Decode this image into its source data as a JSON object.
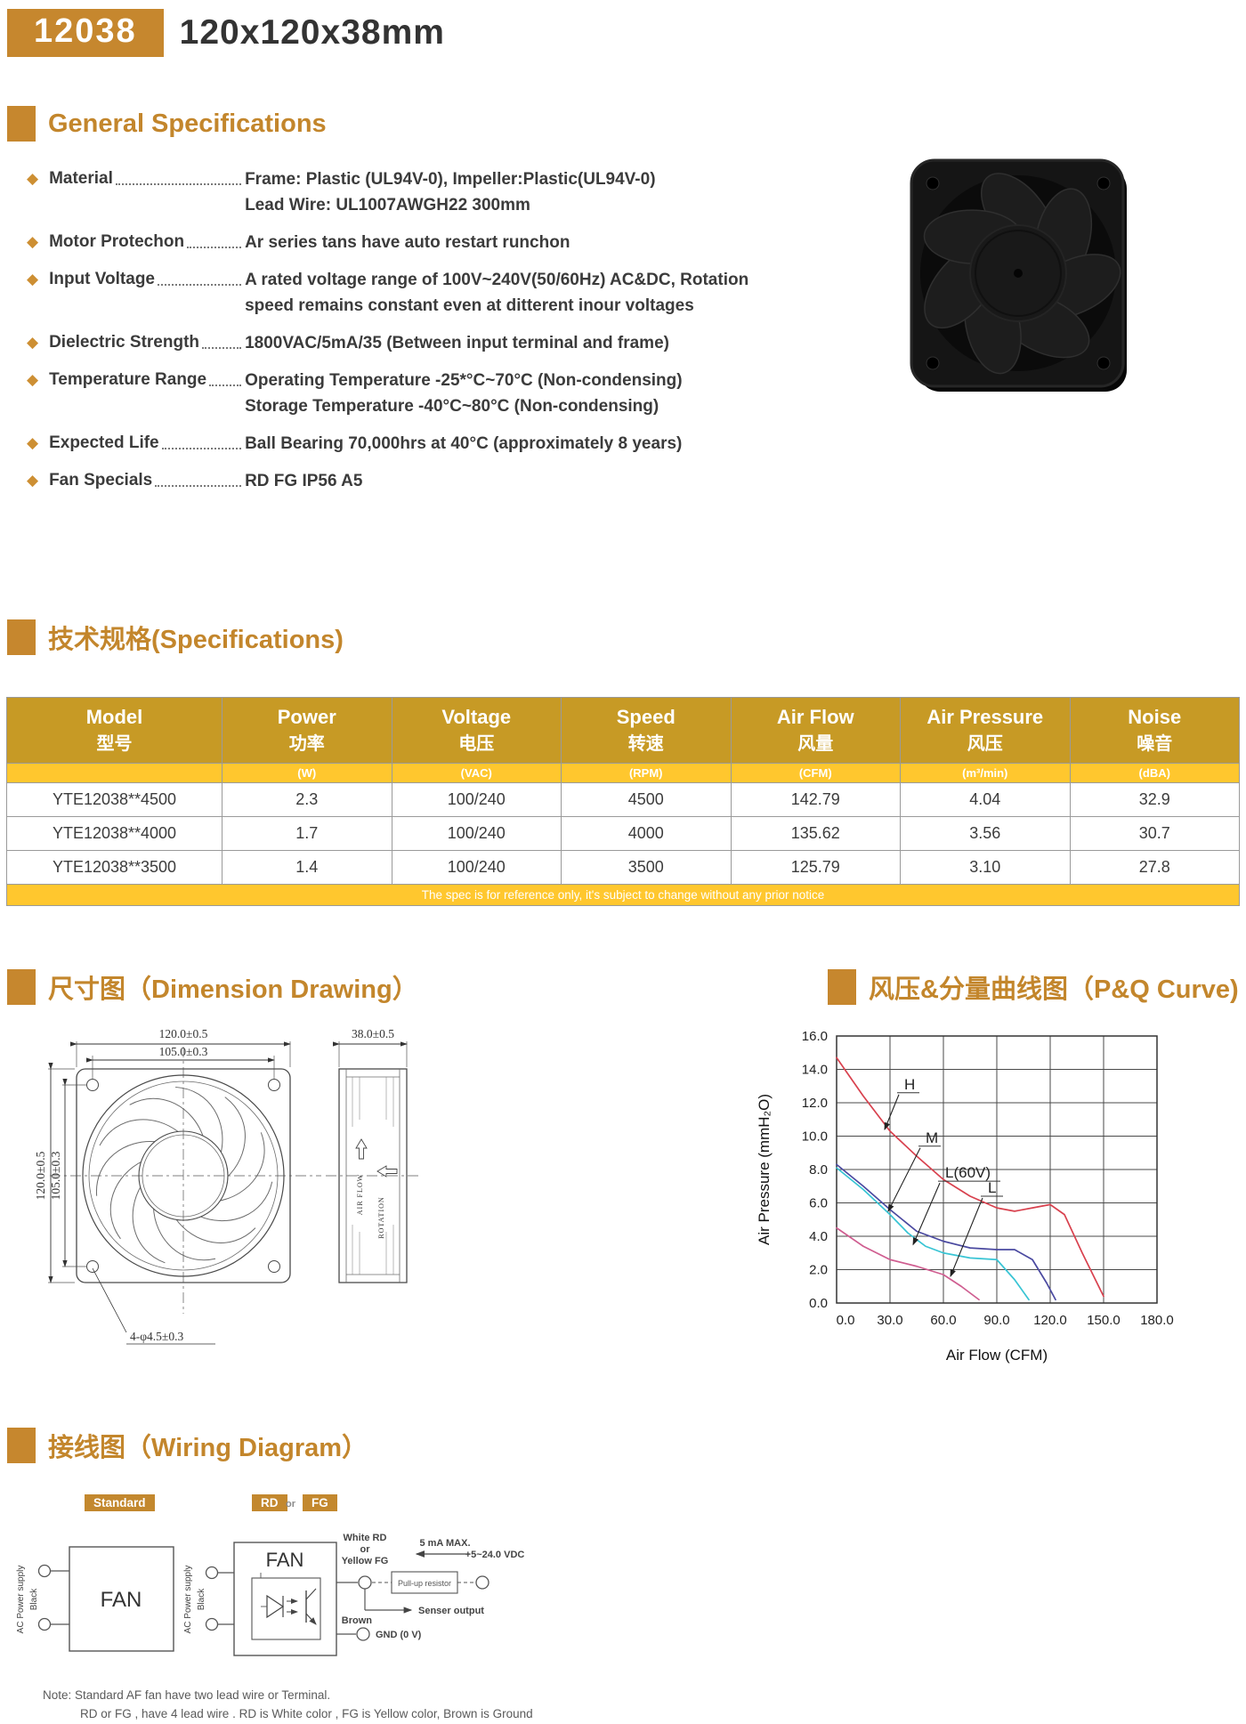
{
  "header": {
    "model_badge": "12038",
    "size_title": "120x120x38mm"
  },
  "general_specs": {
    "title": "General Specifications",
    "items": [
      {
        "label": "Material",
        "lines": [
          "Frame: Plastic (UL94V-0), Impeller:Plastic(UL94V-0)",
          "Lead Wire: UL1007AWGH22 300mm"
        ]
      },
      {
        "label": "Motor Protechon",
        "lines": [
          "Ar series tans have auto restart runchon"
        ]
      },
      {
        "label": "Input Voltage",
        "lines": [
          "A rated voltage range of 100V~240V(50/60Hz) AC&DC, Rotation",
          "speed remains constant even at ditterent inour voltages"
        ]
      },
      {
        "label": "Dielectric Strength",
        "lines": [
          "1800VAC/5mA/35 (Between input terminal and frame)"
        ]
      },
      {
        "label": "Temperature Range",
        "lines": [
          "Operating Temperature -25*°C~70°C (Non-condensing)",
          "Storage Temperature -40°C~80°C (Non-condensing)"
        ]
      },
      {
        "label": "Expected Life",
        "lines": [
          "Ball Bearing 70,000hrs at 40°C (approximately 8 years)"
        ]
      },
      {
        "label": "Fan Specials",
        "lines": [
          "RD FG IP56 A5"
        ]
      }
    ]
  },
  "spec_table": {
    "title": "技术规格(Specifications)",
    "columns": [
      {
        "en": "Model",
        "zh": "型号",
        "unit": ""
      },
      {
        "en": "Power",
        "zh": "功率",
        "unit": "(W)"
      },
      {
        "en": "Voltage",
        "zh": "电压",
        "unit": "(VAC)"
      },
      {
        "en": "Speed",
        "zh": "转速",
        "unit": "(RPM)"
      },
      {
        "en": "Air Flow",
        "zh": "风量",
        "unit": "(CFM)"
      },
      {
        "en": "Air Pressure",
        "zh": "风压",
        "unit": "(m³/min)"
      },
      {
        "en": "Noise",
        "zh": "噪音",
        "unit": "(dBA)"
      }
    ],
    "rows": [
      [
        "YTE12038**4500",
        "2.3",
        "100/240",
        "4500",
        "142.79",
        "4.04",
        "32.9"
      ],
      [
        "YTE12038**4000",
        "1.7",
        "100/240",
        "4000",
        "135.62",
        "3.56",
        "30.7"
      ],
      [
        "YTE12038**3500",
        "1.4",
        "100/240",
        "3500",
        "125.79",
        "3.10",
        "27.8"
      ]
    ],
    "footnote": "The spec is for reference only, it's subject to change without any prior notice"
  },
  "dimension": {
    "title": "尺寸图（Dimension Drawing）",
    "front": {
      "width_top": "120.0±0.5",
      "pitch_top": "105.0±0.3",
      "height_left": "120.0±0.5",
      "pitch_left": "105.0±0.3",
      "holes": "4-φ4.5±0.3"
    },
    "side": {
      "depth": "38.0±0.5",
      "airflow": "AIR FLOW",
      "rotation": "ROTATION"
    }
  },
  "pq_curve": {
    "title": "风压&分量曲线图（P&Q Curve)",
    "chart_data": {
      "type": "line",
      "xlabel": "Air Flow (CFM)",
      "ylabel": "Air Pressure (mmH₂O)",
      "xlim": [
        0,
        180
      ],
      "xstep": 30,
      "ylim": [
        0,
        16
      ],
      "ystep": 2,
      "grid": true,
      "legend_position": "inline-annotations",
      "series": [
        {
          "name": "H",
          "color": "#d8414e",
          "x": [
            0,
            15,
            30,
            45,
            60,
            75,
            90,
            100,
            110,
            120,
            128,
            138,
            150
          ],
          "y": [
            14.7,
            12.4,
            10.3,
            8.8,
            7.4,
            6.4,
            5.7,
            5.5,
            5.7,
            5.9,
            5.3,
            3.0,
            0.4
          ]
        },
        {
          "name": "M",
          "color": "#4a49a0",
          "x": [
            0,
            15,
            30,
            45,
            60,
            75,
            90,
            100,
            110,
            118,
            123
          ],
          "y": [
            8.3,
            7.0,
            5.6,
            4.3,
            3.7,
            3.3,
            3.2,
            3.2,
            2.6,
            1.2,
            0.2
          ]
        },
        {
          "name": "L(60V)",
          "color": "#38c4d4",
          "x": [
            0,
            15,
            30,
            40,
            50,
            60,
            75,
            90,
            100,
            108
          ],
          "y": [
            8.1,
            6.8,
            5.3,
            4.2,
            3.4,
            3.0,
            2.7,
            2.6,
            1.4,
            0.2
          ]
        },
        {
          "name": "L",
          "color": "#cf5d90",
          "x": [
            0,
            15,
            30,
            45,
            60,
            70,
            80
          ],
          "y": [
            4.5,
            3.4,
            2.6,
            2.2,
            1.7,
            1.0,
            0.2
          ]
        }
      ],
      "annotations": [
        {
          "label": "H",
          "lx": 38,
          "ly": 12.6,
          "tx": 27,
          "ty": 10.4
        },
        {
          "label": "M",
          "lx": 50,
          "ly": 9.4,
          "tx": 29,
          "ty": 5.5
        },
        {
          "label": "L(60V)",
          "lx": 61,
          "ly": 7.3,
          "tx": 43,
          "ty": 3.5
        },
        {
          "label": "L",
          "lx": 85,
          "ly": 6.4,
          "tx": 64,
          "ty": 1.6
        }
      ]
    }
  },
  "wiring": {
    "title": "接线图（Wiring Diagram）",
    "badges": {
      "standard": "Standard",
      "rd": "RD",
      "or": "or",
      "fg": "FG"
    },
    "fan_label": "FAN",
    "labels": {
      "supply": "AC Power supply",
      "black": "Black",
      "signal_line1": "White RD",
      "signal_line2": "or",
      "signal_line3": "Yellow FG",
      "current": "5 mA MAX.",
      "vdc": "+5~24.0 VDC",
      "pullup": "Pull-up resistor",
      "sensor": "Senser output",
      "brown": "Brown",
      "gnd": "GND (0 V)"
    },
    "notes": [
      "Note: Standard AF fan have two lead wire or Terminal.",
      "RD or FG , have 4 lead wire . RD is White color , FG is Yellow color, Brown is Ground"
    ]
  }
}
